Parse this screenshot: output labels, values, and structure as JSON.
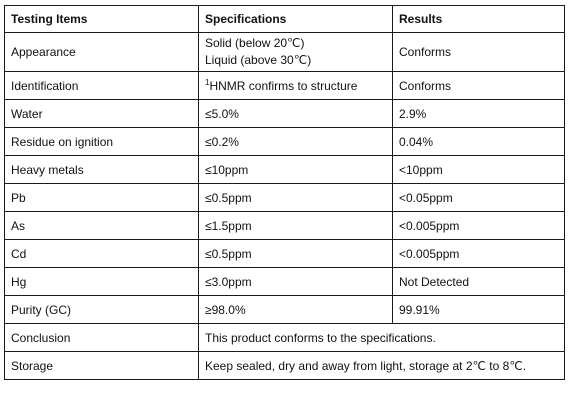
{
  "table": {
    "headers": [
      "Testing Items",
      "Specifications",
      "Results"
    ],
    "rows": [
      {
        "item": "Appearance",
        "spec_lines": [
          "Solid (below 20℃)",
          "Liquid (above 30℃)"
        ],
        "result": "Conforms"
      },
      {
        "item": "Identification",
        "spec_sup": "1",
        "spec": "HNMR confirms to structure",
        "result": "Conforms"
      },
      {
        "item": "Water",
        "spec": "≤5.0%",
        "result": "2.9%"
      },
      {
        "item": "Residue on ignition",
        "spec": "≤0.2%",
        "result": "0.04%"
      },
      {
        "item": "Heavy metals",
        "spec": "≤10ppm",
        "result": "<10ppm"
      },
      {
        "item": "Pb",
        "spec": "≤0.5ppm",
        "result": "<0.05ppm"
      },
      {
        "item": "As",
        "spec": "≤1.5ppm",
        "result": "<0.005ppm"
      },
      {
        "item": "Cd",
        "spec": "≤0.5ppm",
        "result": "<0.005ppm"
      },
      {
        "item": "Hg",
        "spec": "≤3.0ppm",
        "result": "Not Detected"
      },
      {
        "item": "Purity (GC)",
        "spec": "≥98.0%",
        "result": "99.91%"
      },
      {
        "item": "Conclusion",
        "merged": "This product conforms to the specifications."
      },
      {
        "item": "Storage",
        "merged": "Keep sealed, dry and away from light, storage at 2℃  to 8℃."
      }
    ]
  }
}
